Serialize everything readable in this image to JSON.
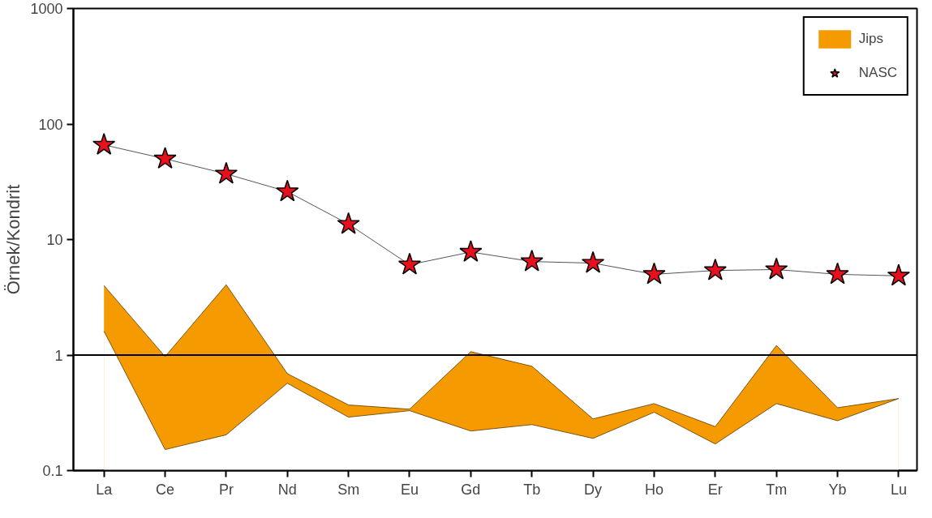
{
  "chart_data": {
    "type": "line",
    "ylabel": "Örnek/Kondrit",
    "log": true,
    "grid": false,
    "legend": "top right",
    "categories": [
      "La",
      "Ce",
      "Pr",
      "Nd",
      "Sm",
      "Eu",
      "Gd",
      "Tb",
      "Dy",
      "Ho",
      "Er",
      "Tm",
      "Yb",
      "Lu"
    ],
    "ylim": [
      0.1,
      1000
    ],
    "yticks": [
      0.1,
      1,
      10,
      100,
      1000
    ],
    "ref_lines": [
      {
        "axis": "y",
        "value": 1,
        "label": null,
        "color": "#000000"
      }
    ],
    "series": [
      {
        "name": "Jips",
        "type": "area",
        "color": "#f59a00",
        "values": [
          4.0,
          0.97,
          4.06,
          0.69,
          0.37,
          0.34,
          1.07,
          0.8,
          0.28,
          0.38,
          0.24,
          1.21,
          0.35,
          0.42
        ]
      },
      {
        "type": "area",
        "color": "#ffffff",
        "values": [
          1.61,
          0.152,
          0.204,
          0.57,
          0.29,
          0.33,
          0.22,
          0.25,
          0.19,
          0.32,
          0.17,
          0.38,
          0.27,
          0.42
        ]
      },
      {
        "name": "NASC",
        "color": "#e8101c",
        "marker": "star",
        "values": [
          66,
          50,
          37,
          26,
          13.6,
          6.05,
          7.8,
          6.45,
          6.25,
          5.0,
          5.4,
          5.5,
          5.0,
          4.85
        ]
      }
    ]
  }
}
